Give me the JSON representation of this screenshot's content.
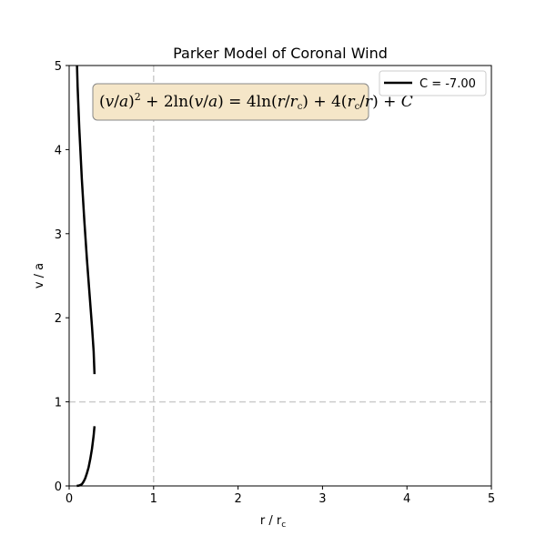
{
  "chart_data": {
    "type": "line",
    "title": "Parker Model of Coronal Wind",
    "xlabel": "r / r",
    "xlabel_sub": "c",
    "ylabel": "v / a",
    "xlim": [
      0,
      5
    ],
    "ylim": [
      0,
      5
    ],
    "xticks": [
      "0",
      "1",
      "2",
      "3",
      "4",
      "5"
    ],
    "yticks": [
      "0",
      "1",
      "2",
      "3",
      "4",
      "5"
    ],
    "grid": false,
    "reference_lines": [
      {
        "orientation": "vertical",
        "x": 1,
        "style": "dashed"
      },
      {
        "orientation": "horizontal",
        "y": 1,
        "style": "dashed"
      }
    ],
    "legend": {
      "location": "top-right",
      "entries": [
        {
          "label": "C = -7.00",
          "color": "#000000"
        }
      ]
    },
    "annotation": "(v/a)^2 + 2ln(v/a) = 4ln(r/r_c) + 4(r_c/r) + C",
    "series": [
      {
        "name": "C = -7.00",
        "color": "#000000",
        "branches": [
          {
            "x": [
              0.093,
              0.1,
              0.12,
              0.15,
              0.18,
              0.21,
              0.24,
              0.27,
              0.29,
              0.3
            ],
            "y": [
              5.0,
              4.75,
              4.25,
              3.65,
              3.15,
              2.7,
              2.3,
              1.9,
              1.6,
              1.33
            ]
          },
          {
            "x": [
              0.09,
              0.12,
              0.15,
              0.17,
              0.19,
              0.21,
              0.23,
              0.25,
              0.27,
              0.29,
              0.3
            ],
            "y": [
              0.0,
              0.005,
              0.02,
              0.05,
              0.09,
              0.15,
              0.22,
              0.32,
              0.44,
              0.6,
              0.71
            ]
          }
        ]
      }
    ]
  },
  "colors": {
    "axis": "#000000",
    "refline": "#cccccc",
    "annotation_bg": "#f5e6c8",
    "annotation_border": "#888888"
  }
}
